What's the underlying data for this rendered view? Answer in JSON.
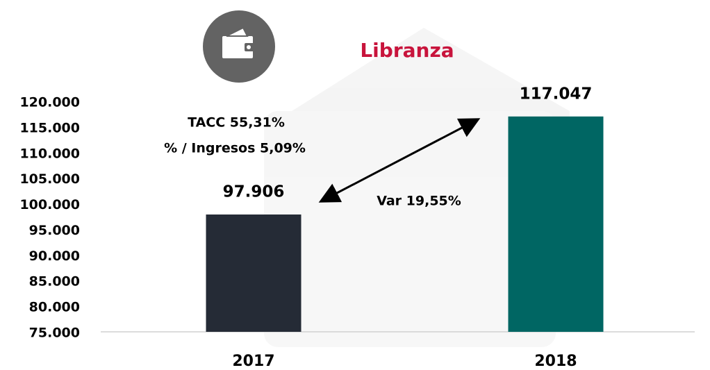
{
  "chart_data": {
    "type": "bar",
    "title": "Libranza",
    "categories": [
      "2017",
      "2018"
    ],
    "values": [
      97906,
      117047
    ],
    "value_labels": [
      "97.906",
      "117.047"
    ],
    "colors": [
      "#252b36",
      "#006663"
    ],
    "ylim": [
      75000,
      120000
    ],
    "yticks": [
      {
        "value": 75000,
        "label": "75.000"
      },
      {
        "value": 80000,
        "label": "80.000"
      },
      {
        "value": 85000,
        "label": "85.000"
      },
      {
        "value": 90000,
        "label": "90.000"
      },
      {
        "value": 95000,
        "label": "95.000"
      },
      {
        "value": 100000,
        "label": "100.000"
      },
      {
        "value": 105000,
        "label": "105.000"
      },
      {
        "value": 110000,
        "label": "110.000"
      },
      {
        "value": 115000,
        "label": "115.000"
      },
      {
        "value": 120000,
        "label": "120.000"
      }
    ],
    "grid": false,
    "annotations": [
      "TACC 55,31%",
      "% / Ingresos 5,09%",
      "Var 19,55%"
    ]
  }
}
